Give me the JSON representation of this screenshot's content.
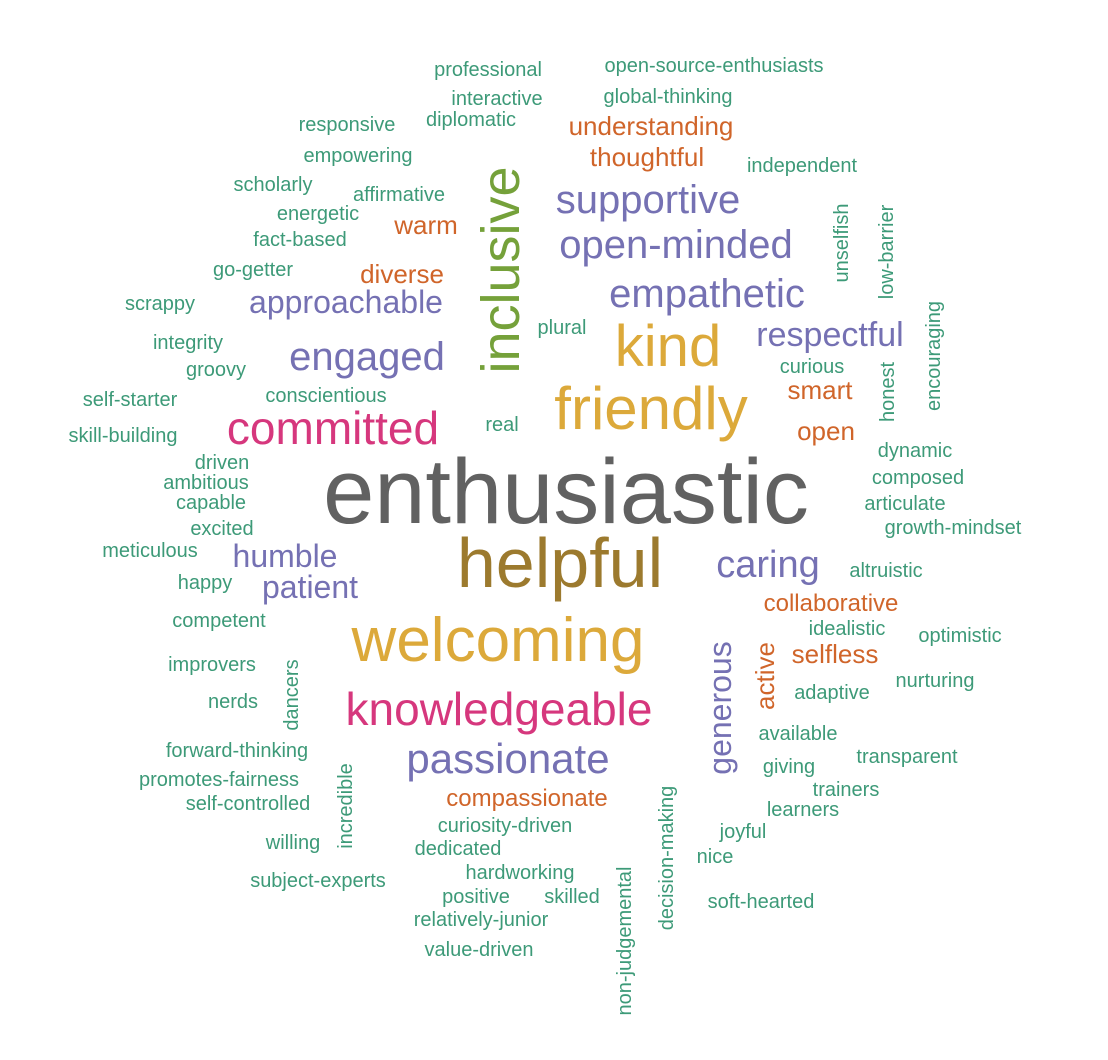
{
  "palette": {
    "green": "#3d9a78",
    "purple": "#7571b3",
    "orange": "#d0652a",
    "gold": "#dca93a",
    "pink": "#d6377d",
    "olive": "#75a13a",
    "brown": "#9c7a2e",
    "gray": "#616161"
  },
  "words": [
    {
      "text": "enthusiastic",
      "color": "gray"
    },
    {
      "text": "helpful",
      "color": "brown"
    },
    {
      "text": "welcoming",
      "color": "gold"
    },
    {
      "text": "friendly",
      "color": "gold"
    },
    {
      "text": "kind",
      "color": "gold"
    },
    {
      "text": "inclusive",
      "color": "olive"
    },
    {
      "text": "committed",
      "color": "pink"
    },
    {
      "text": "knowledgeable",
      "color": "pink"
    },
    {
      "text": "passionate",
      "color": "purple"
    },
    {
      "text": "open-minded",
      "color": "purple"
    },
    {
      "text": "supportive",
      "color": "purple"
    },
    {
      "text": "empathetic",
      "color": "purple"
    },
    {
      "text": "engaged",
      "color": "purple"
    },
    {
      "text": "caring",
      "color": "purple"
    },
    {
      "text": "respectful",
      "color": "purple"
    },
    {
      "text": "approachable",
      "color": "purple"
    },
    {
      "text": "patient",
      "color": "purple"
    },
    {
      "text": "humble",
      "color": "purple"
    },
    {
      "text": "generous",
      "color": "purple"
    },
    {
      "text": "understanding",
      "color": "orange"
    },
    {
      "text": "thoughtful",
      "color": "orange"
    },
    {
      "text": "warm",
      "color": "orange"
    },
    {
      "text": "diverse",
      "color": "orange"
    },
    {
      "text": "smart",
      "color": "orange"
    },
    {
      "text": "open",
      "color": "orange"
    },
    {
      "text": "collaborative",
      "color": "orange"
    },
    {
      "text": "selfless",
      "color": "orange"
    },
    {
      "text": "active",
      "color": "orange"
    },
    {
      "text": "compassionate",
      "color": "orange"
    },
    {
      "text": "professional",
      "color": "green"
    },
    {
      "text": "open-source-enthusiasts",
      "color": "green"
    },
    {
      "text": "interactive",
      "color": "green"
    },
    {
      "text": "global-thinking",
      "color": "green"
    },
    {
      "text": "responsive",
      "color": "green"
    },
    {
      "text": "diplomatic",
      "color": "green"
    },
    {
      "text": "empowering",
      "color": "green"
    },
    {
      "text": "independent",
      "color": "green"
    },
    {
      "text": "scholarly",
      "color": "green"
    },
    {
      "text": "affirmative",
      "color": "green"
    },
    {
      "text": "energetic",
      "color": "green"
    },
    {
      "text": "fact-based",
      "color": "green"
    },
    {
      "text": "go-getter",
      "color": "green"
    },
    {
      "text": "scrappy",
      "color": "green"
    },
    {
      "text": "integrity",
      "color": "green"
    },
    {
      "text": "groovy",
      "color": "green"
    },
    {
      "text": "self-starter",
      "color": "green"
    },
    {
      "text": "conscientious",
      "color": "green"
    },
    {
      "text": "skill-building",
      "color": "green"
    },
    {
      "text": "driven",
      "color": "green"
    },
    {
      "text": "ambitious",
      "color": "green"
    },
    {
      "text": "capable",
      "color": "green"
    },
    {
      "text": "excited",
      "color": "green"
    },
    {
      "text": "meticulous",
      "color": "green"
    },
    {
      "text": "happy",
      "color": "green"
    },
    {
      "text": "competent",
      "color": "green"
    },
    {
      "text": "improvers",
      "color": "green"
    },
    {
      "text": "nerds",
      "color": "green"
    },
    {
      "text": "dancers",
      "color": "green"
    },
    {
      "text": "forward-thinking",
      "color": "green"
    },
    {
      "text": "promotes-fairness",
      "color": "green"
    },
    {
      "text": "self-controlled",
      "color": "green"
    },
    {
      "text": "willing",
      "color": "green"
    },
    {
      "text": "incredible",
      "color": "green"
    },
    {
      "text": "subject-experts",
      "color": "green"
    },
    {
      "text": "curiosity-driven",
      "color": "green"
    },
    {
      "text": "dedicated",
      "color": "green"
    },
    {
      "text": "hardworking",
      "color": "green"
    },
    {
      "text": "positive",
      "color": "green"
    },
    {
      "text": "skilled",
      "color": "green"
    },
    {
      "text": "relatively-junior",
      "color": "green"
    },
    {
      "text": "value-driven",
      "color": "green"
    },
    {
      "text": "non-judgemental",
      "color": "green"
    },
    {
      "text": "decision-making",
      "color": "green"
    },
    {
      "text": "plural",
      "color": "green"
    },
    {
      "text": "real",
      "color": "green"
    },
    {
      "text": "curious",
      "color": "green"
    },
    {
      "text": "unselfish",
      "color": "green"
    },
    {
      "text": "low-barrier",
      "color": "green"
    },
    {
      "text": "encouraging",
      "color": "green"
    },
    {
      "text": "honest",
      "color": "green"
    },
    {
      "text": "dynamic",
      "color": "green"
    },
    {
      "text": "composed",
      "color": "green"
    },
    {
      "text": "articulate",
      "color": "green"
    },
    {
      "text": "growth-mindset",
      "color": "green"
    },
    {
      "text": "altruistic",
      "color": "green"
    },
    {
      "text": "idealistic",
      "color": "green"
    },
    {
      "text": "optimistic",
      "color": "green"
    },
    {
      "text": "nurturing",
      "color": "green"
    },
    {
      "text": "adaptive",
      "color": "green"
    },
    {
      "text": "available",
      "color": "green"
    },
    {
      "text": "transparent",
      "color": "green"
    },
    {
      "text": "giving",
      "color": "green"
    },
    {
      "text": "trainers",
      "color": "green"
    },
    {
      "text": "learners",
      "color": "green"
    },
    {
      "text": "joyful",
      "color": "green"
    },
    {
      "text": "nice",
      "color": "green"
    },
    {
      "text": "soft-hearted",
      "color": "green"
    }
  ]
}
